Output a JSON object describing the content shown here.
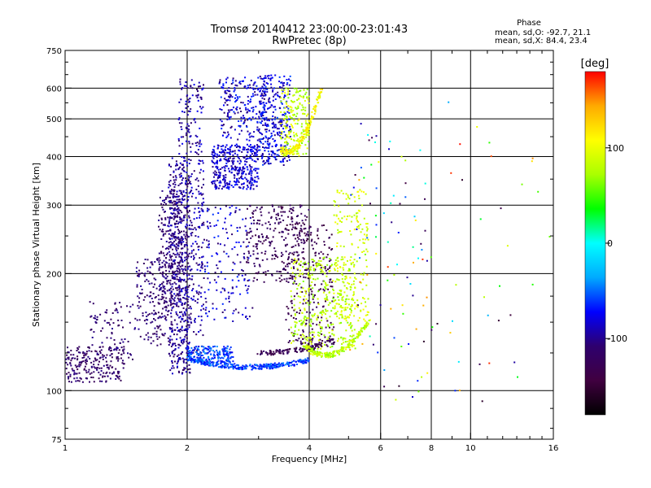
{
  "chart_data": {
    "type": "scatter",
    "title": "Tromsø 20140412 23:00:00-23:01:43",
    "subtitle": "RwPretec (8p)",
    "xlabel": "Frequency [MHz]",
    "ylabel": "Stationary phase Virtual Height [km]",
    "x_scale": "log",
    "y_scale": "log",
    "xlim": [
      1,
      16
    ],
    "ylim": [
      75,
      750
    ],
    "x_ticks": [
      1,
      2,
      4,
      6,
      8,
      10,
      16
    ],
    "y_ticks": [
      75,
      100,
      200,
      300,
      400,
      500,
      600,
      750
    ],
    "x_tick_labels": [
      "1",
      "2",
      "4",
      "6",
      "8",
      "10",
      "16"
    ],
    "y_tick_labels": [
      "75",
      "100",
      "200",
      "300",
      "400",
      "500",
      "600",
      "750"
    ],
    "grid": true,
    "stats": {
      "header": "Phase",
      "line_o": "mean, sd,O: -92.7, 21.1",
      "line_x": "mean, sd,X: 84.4, 23.4"
    },
    "colorbar": {
      "unit": "[deg]",
      "range": [
        -180,
        180
      ],
      "ticks": [
        -100,
        0,
        100
      ],
      "tick_labels": [
        "-100",
        "0",
        "100"
      ],
      "colormap": [
        "#000000",
        "#400040",
        "#2e006e",
        "#0000ff",
        "#00aaff",
        "#00ffff",
        "#00ff00",
        "#aaff00",
        "#ffff00",
        "#ffaa00",
        "#ff0000"
      ]
    },
    "clusters": [
      {
        "x": [
          1.0,
          1.4
        ],
        "y": [
          105,
          130
        ],
        "phase": [
          -130,
          -100
        ],
        "n": 220
      },
      {
        "x": [
          1.15,
          1.5
        ],
        "y": [
          120,
          170
        ],
        "phase": [
          -125,
          -95
        ],
        "n": 80
      },
      {
        "x": [
          1.5,
          1.85
        ],
        "y": [
          130,
          220
        ],
        "phase": [
          -125,
          -95
        ],
        "n": 200
      },
      {
        "x": [
          1.7,
          1.95
        ],
        "y": [
          160,
          330
        ],
        "phase": [
          -125,
          -95
        ],
        "n": 260
      },
      {
        "x": [
          1.8,
          2.05
        ],
        "y": [
          110,
          400
        ],
        "phase": [
          -120,
          -80
        ],
        "n": 420
      },
      {
        "x": [
          1.9,
          2.2
        ],
        "y": [
          120,
          640
        ],
        "phase": [
          -115,
          -75
        ],
        "n": 380
      },
      {
        "x": [
          2.0,
          2.6
        ],
        "y": [
          118,
          130
        ],
        "phase": [
          -80,
          -40
        ],
        "n": 180
      },
      {
        "x": [
          2.2,
          2.9
        ],
        "y": [
          150,
          300
        ],
        "phase": [
          -110,
          -60
        ],
        "n": 160
      },
      {
        "x": [
          2.3,
          3.0
        ],
        "y": [
          330,
          430
        ],
        "phase": [
          -105,
          -65
        ],
        "n": 380
      },
      {
        "x": [
          2.4,
          3.2
        ],
        "y": [
          440,
          640
        ],
        "phase": [
          -110,
          -60
        ],
        "n": 240
      },
      {
        "x": [
          3.0,
          3.6
        ],
        "y": [
          380,
          650
        ],
        "phase": [
          -105,
          -55
        ],
        "n": 300
      },
      {
        "x": [
          3.4,
          4.0
        ],
        "y": [
          400,
          600
        ],
        "phase": [
          60,
          110
        ],
        "n": 200
      },
      {
        "x": [
          2.8,
          4.0
        ],
        "y": [
          190,
          300
        ],
        "phase": [
          -140,
          -110
        ],
        "n": 260
      },
      {
        "x": [
          3.5,
          4.6
        ],
        "y": [
          130,
          270
        ],
        "phase": [
          -150,
          -115
        ],
        "n": 240
      },
      {
        "x": [
          3.6,
          5.2
        ],
        "y": [
          128,
          220
        ],
        "phase": [
          60,
          100
        ],
        "n": 380
      },
      {
        "x": [
          4.6,
          5.6
        ],
        "y": [
          150,
          330
        ],
        "phase": [
          70,
          110
        ],
        "n": 180
      },
      {
        "x": [
          5.0,
          8.0
        ],
        "y": [
          90,
          500
        ],
        "phase": [
          -160,
          180
        ],
        "n": 90
      },
      {
        "x": [
          8.0,
          16.0
        ],
        "y": [
          90,
          560
        ],
        "phase": [
          -160,
          180
        ],
        "n": 35
      }
    ],
    "arcs": [
      {
        "f0": 2.0,
        "f1": 4.0,
        "h_start": 121,
        "h_end": 120,
        "h_mid": 115,
        "phase": [
          -75,
          -40
        ],
        "n": 320
      },
      {
        "f0": 3.0,
        "f1": 4.6,
        "h_start": 125,
        "h_end": 134,
        "h_mid": 127,
        "phase": [
          -140,
          -110
        ],
        "n": 120
      },
      {
        "f0": 3.9,
        "f1": 5.6,
        "h_start": 130,
        "h_end": 150,
        "h_mid": 125,
        "phase": [
          60,
          100
        ],
        "n": 200
      },
      {
        "f0": 3.4,
        "f1": 4.3,
        "h_start": 420,
        "h_end": 600,
        "h_mid": 440,
        "phase": [
          90,
          130
        ],
        "n": 160
      }
    ]
  }
}
